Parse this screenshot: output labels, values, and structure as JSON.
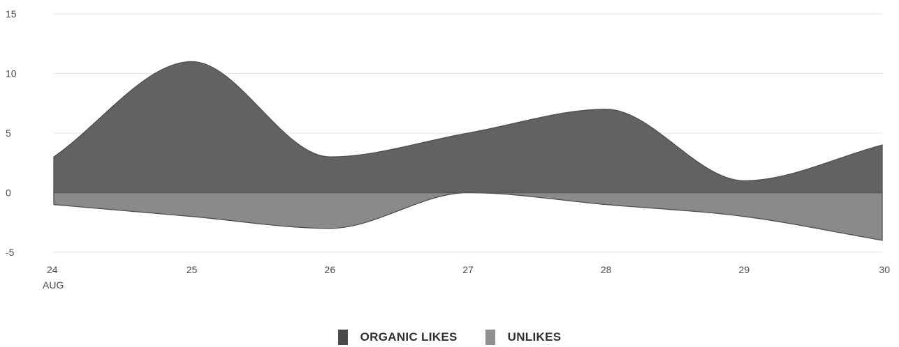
{
  "chart_data": {
    "type": "area",
    "x": [
      "24",
      "25",
      "26",
      "27",
      "28",
      "29",
      "30"
    ],
    "x_sublabel": "AUG",
    "series": [
      {
        "name": "ORGANIC LIKES",
        "values": [
          3,
          11,
          3,
          5,
          7,
          1,
          4
        ],
        "color": "#626262"
      },
      {
        "name": "UNLIKES",
        "values": [
          -1,
          -2,
          -3,
          0,
          -1,
          -2,
          -4
        ],
        "color": "#8a8a8a"
      }
    ],
    "yticks": [
      15,
      10,
      5,
      0,
      -5
    ],
    "ylim": [
      -5,
      15
    ],
    "grid": true,
    "legend": "bottom-center",
    "title": "",
    "xlabel": "",
    "ylabel": ""
  },
  "legend": {
    "items": [
      {
        "label": "ORGANIC LIKES",
        "color": "#4a4a4a"
      },
      {
        "label": "UNLIKES",
        "color": "#8f8f8f"
      }
    ]
  }
}
